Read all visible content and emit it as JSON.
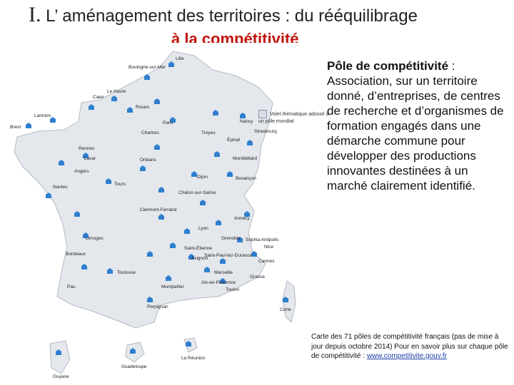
{
  "title": {
    "numeral": "I.",
    "text": " L’ aménagement des territoires : du rééquilibrage",
    "subtitle": "à la compétitivité"
  },
  "legend": {
    "text": "Volet thématique adossé à un pôle mondial"
  },
  "definition": {
    "term": "Pôle de compétitivité",
    "body": " : Association, sur un territoire donné, d’entreprises, de centres de recherche et d’organismes de formation engagés dans une démarche commune pour développer des productions innovantes destinées à un marché clairement identifié."
  },
  "caption": {
    "text": "Carte des 71 pôles de compétitivité français (pas de mise à jour depuis octobre 2014) Pour en savoir plus sur chaque pôle de compétitivité : ",
    "link": "www.competitivite.gouv.fr"
  },
  "map_cities": [
    "Lille",
    "Boulogne-sur-Mer",
    "Caen",
    "Rouen",
    "Le Havre",
    "Lannion",
    "Brest",
    "Rennes",
    "Laval",
    "Angers",
    "Nantes",
    "Tours",
    "Orléans",
    "Paris",
    "Chartres",
    "Troyes",
    "Nancy",
    "Strasbourg",
    "Épinal",
    "Montbéliard",
    "Dijon",
    "Besançon",
    "Chalon-sur-Saône",
    "Limoges",
    "Clermont-Ferrand",
    "Lyon",
    "Grenoble",
    "Annecy",
    "Saint-Étienne",
    "Bordeaux",
    "Pau",
    "Toulouse",
    "Montpellier",
    "Perpignan",
    "Marseille",
    "Toulon",
    "Nice",
    "Cannes",
    "Grasse",
    "Corte",
    "Guadeloupe",
    "Guyane",
    "La Réunion",
    "Avignon",
    "Aix-en-Provence",
    "Saint-Paul-lez-Durance",
    "Sophia Antipolis"
  ],
  "colors": {
    "pole_marker": "#2f7fcf",
    "subtitle": "#c0140c",
    "link": "#1a3ea8"
  }
}
